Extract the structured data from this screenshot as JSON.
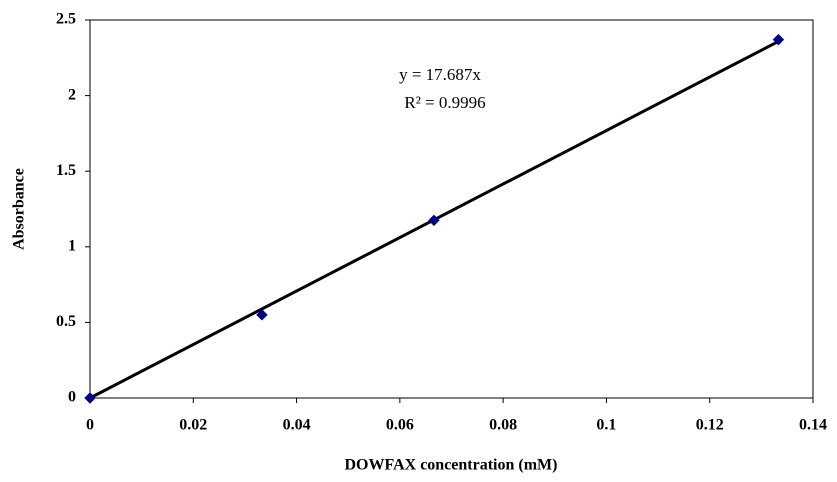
{
  "chart_data": {
    "type": "scatter",
    "x_label": "DOWFAX concentration (mM)",
    "y_label": "Absorbance",
    "annotations": [
      "y = 17.687x",
      "R² = 0.9996"
    ],
    "series": [
      {
        "color": "#000080",
        "x": [
          0,
          0.0333,
          0.0666,
          0.1333
        ],
        "values": [
          0,
          0.55,
          1.175,
          2.37
        ]
      }
    ],
    "trendline": {
      "color": "#000000",
      "x": [
        0,
        0.1333
      ],
      "values": [
        0,
        2.358
      ]
    },
    "xlim": [
      0,
      0.14
    ],
    "xticks": [
      0,
      0.02,
      0.04,
      0.06,
      0.08,
      0.1,
      0.12,
      0.14
    ],
    "ylim": [
      0,
      2.5
    ],
    "yticks": [
      0,
      0.5,
      1,
      1.5,
      2,
      2.5
    ]
  }
}
